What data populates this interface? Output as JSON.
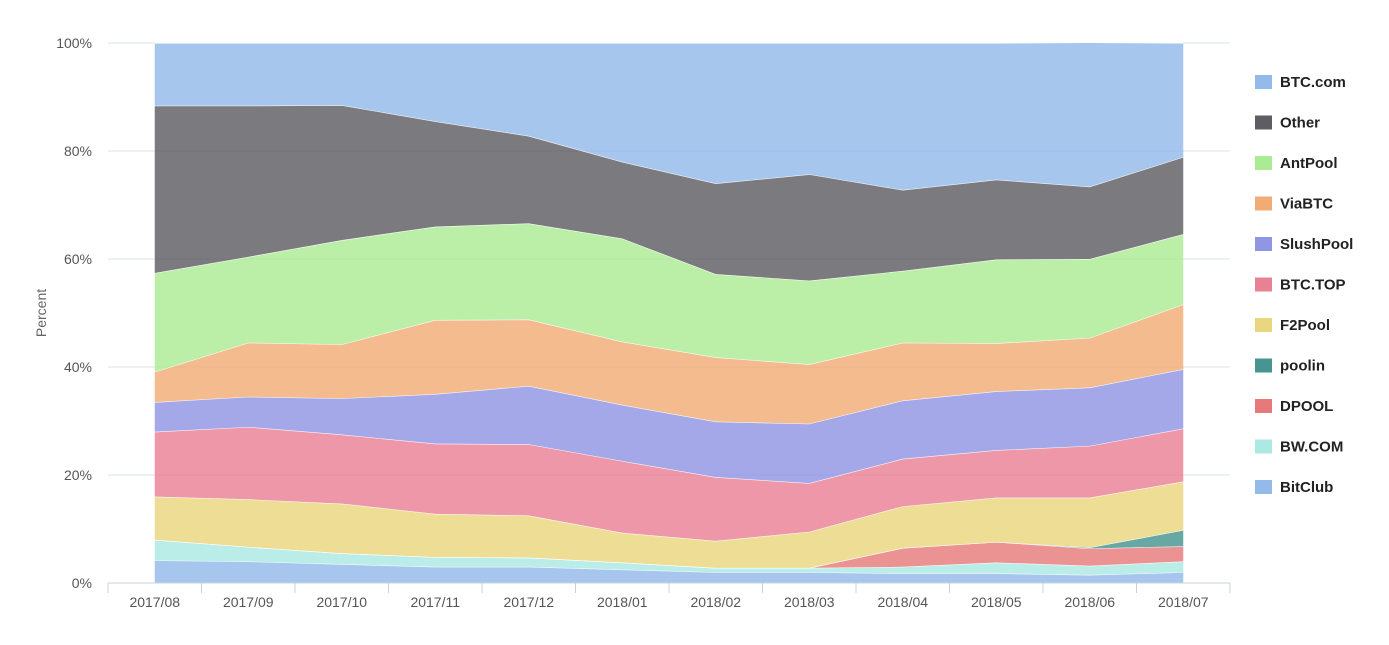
{
  "chart_data": {
    "type": "area",
    "stacked": true,
    "percent": true,
    "ylabel": "Percent",
    "xlabel": "",
    "ylim": [
      0,
      100
    ],
    "yticks": [
      "0%",
      "20%",
      "40%",
      "60%",
      "80%",
      "100%"
    ],
    "grid": true,
    "legend_position": "right",
    "categories": [
      "2017/08",
      "2017/09",
      "2017/10",
      "2017/11",
      "2017/12",
      "2018/01",
      "2018/02",
      "2018/03",
      "2018/04",
      "2018/05",
      "2018/06",
      "2018/07"
    ],
    "series": [
      {
        "name": "BitClub",
        "color": "#8db6e8",
        "values": [
          4.2,
          4.0,
          3.5,
          3.0,
          3.0,
          2.5,
          2.0,
          2.0,
          1.8,
          1.8,
          1.5,
          2.0
        ]
      },
      {
        "name": "BW.COM",
        "color": "#a6e8e0",
        "values": [
          3.8,
          2.7,
          2.0,
          1.8,
          1.7,
          1.3,
          0.8,
          0.8,
          1.2,
          2.0,
          1.7,
          2.0
        ]
      },
      {
        "name": "DPOOL",
        "color": "#e57373",
        "values": [
          0,
          0,
          0,
          0,
          0,
          0,
          0,
          0,
          3.5,
          3.8,
          3.2,
          2.8
        ]
      },
      {
        "name": "poolin",
        "color": "#3d8f8a",
        "values": [
          0,
          0,
          0,
          0,
          0,
          0,
          0,
          0,
          0,
          0,
          0.2,
          3.0
        ]
      },
      {
        "name": "F2Pool",
        "color": "#e8d477",
        "values": [
          8.0,
          8.8,
          9.2,
          8.0,
          7.8,
          5.5,
          5.0,
          6.7,
          7.7,
          8.2,
          9.2,
          9.0
        ]
      },
      {
        "name": "BTC.TOP",
        "color": "#e87a8f",
        "values": [
          12.0,
          13.4,
          12.8,
          13.0,
          13.2,
          13.3,
          11.8,
          9.0,
          8.8,
          8.8,
          9.6,
          9.8
        ]
      },
      {
        "name": "SlushPool",
        "color": "#8a90e3",
        "values": [
          5.5,
          5.6,
          6.7,
          9.2,
          10.8,
          10.4,
          10.3,
          11.0,
          10.8,
          10.9,
          10.8,
          11.0
        ]
      },
      {
        "name": "ViaBTC",
        "color": "#f0a86e",
        "values": [
          5.6,
          10.0,
          10.0,
          13.7,
          12.3,
          11.7,
          11.9,
          11.0,
          10.7,
          8.9,
          9.2,
          12.0
        ]
      },
      {
        "name": "AntPool",
        "color": "#a8ea8f",
        "values": [
          18.3,
          15.9,
          19.3,
          17.3,
          17.8,
          19.1,
          15.4,
          15.5,
          13.3,
          15.5,
          14.6,
          13.0
        ]
      },
      {
        "name": "Other",
        "color": "#56545b",
        "values": [
          31.0,
          28.0,
          25.0,
          19.5,
          16.2,
          14.2,
          16.8,
          19.7,
          15.0,
          14.8,
          13.4,
          14.3
        ]
      },
      {
        "name": "BTC.com",
        "color": "#8db6e8",
        "values": [
          11.6,
          11.6,
          11.5,
          14.5,
          17.2,
          22.0,
          26.0,
          24.3,
          27.2,
          25.3,
          26.7,
          21.1
        ]
      }
    ],
    "legend_order": [
      "BTC.com",
      "Other",
      "AntPool",
      "ViaBTC",
      "SlushPool",
      "BTC.TOP",
      "F2Pool",
      "poolin",
      "DPOOL",
      "BW.COM",
      "BitClub"
    ]
  }
}
